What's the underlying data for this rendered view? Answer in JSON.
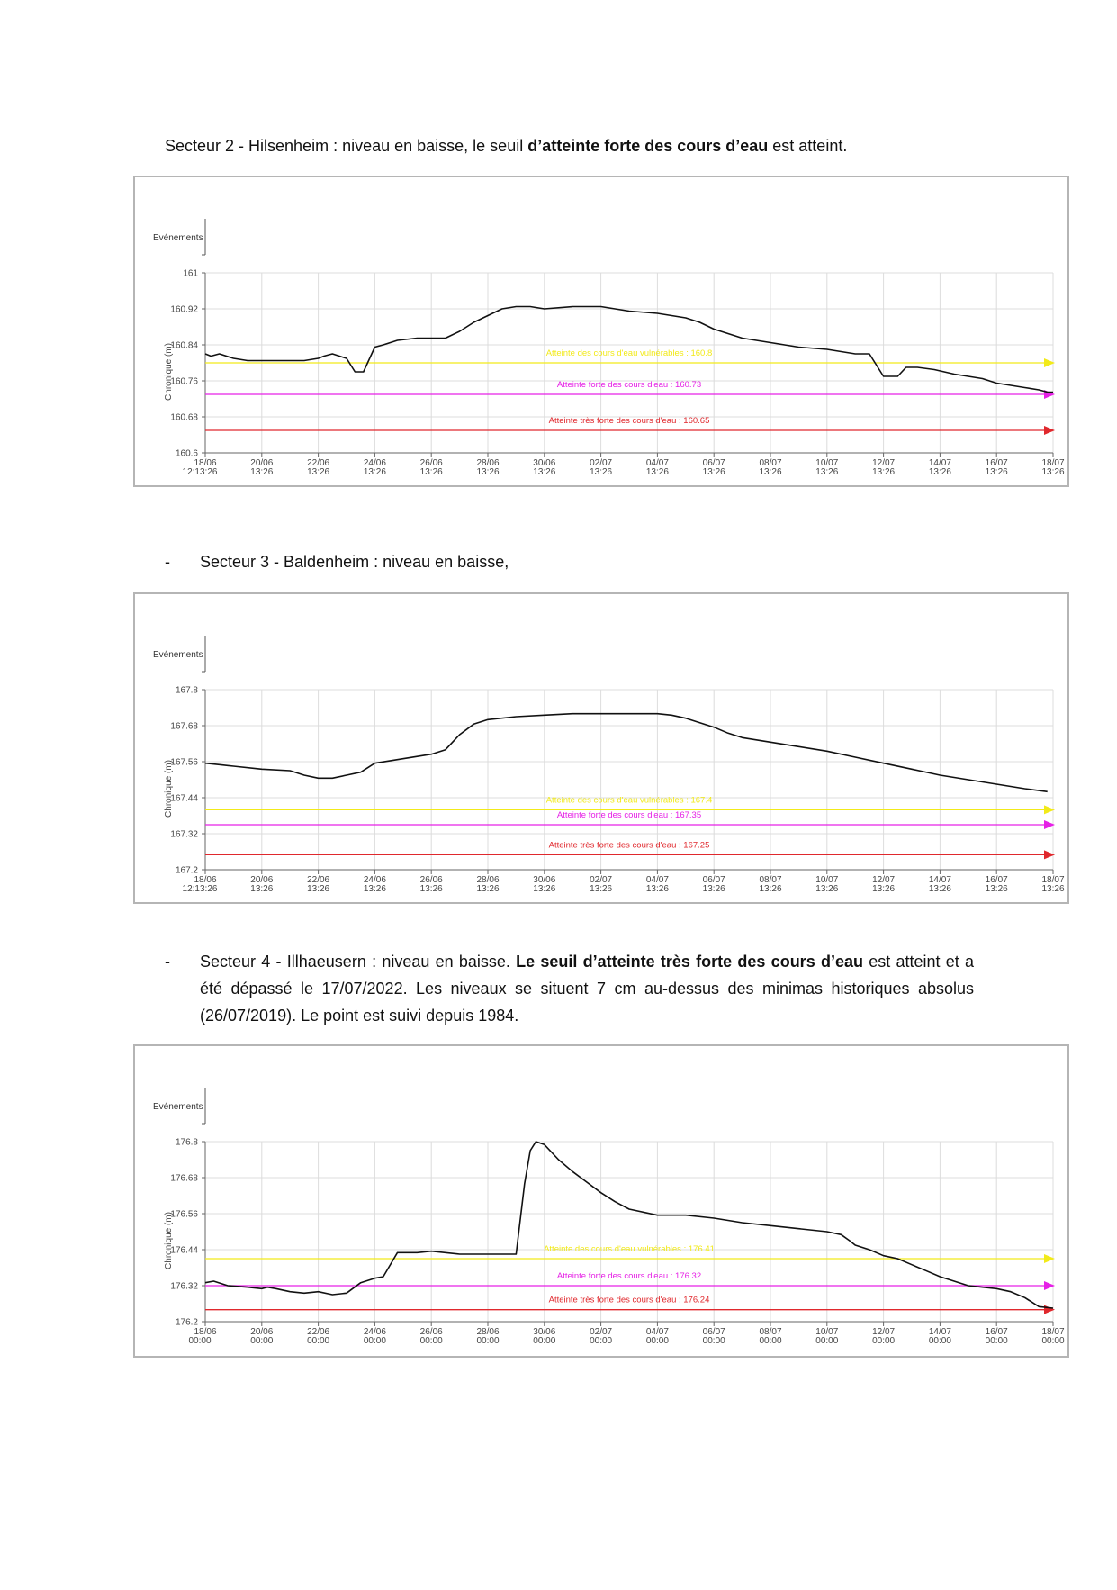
{
  "paragraphs": {
    "s2_pre": "Secteur 2 - Hilsenheim : niveau en baisse, le seuil ",
    "s2_bold": "d’atteinte forte des cours d’eau",
    "s2_post": " est atteint.",
    "bullet": "-",
    "s3": "Secteur 3 - Baldenheim : niveau en baisse,",
    "s4_pre": "Secteur 4 - Illhaeusern : niveau en baisse. ",
    "s4_bold": "Le seuil d’atteinte très forte des cours d’eau",
    "s4_post": " est atteint et a été dépassé le 17/07/2022. Les niveaux se situent 7 cm au-dessus des minimas historiques absolus (26/07/2019). Le point est suivi depuis 1984."
  },
  "colors": {
    "line": "#111111",
    "grid": "#dcdcdc",
    "yellow": "#f2ea19",
    "magenta": "#e620e6",
    "red": "#e0282d",
    "frame": "#b5b5b5"
  },
  "chart_data": [
    {
      "type": "line",
      "title": "Secteur 2 - Hilsenheim",
      "legend_label": "Evénements",
      "ylabel": "Chronique (m)",
      "ylim": [
        160.6,
        161
      ],
      "yticks": [
        "161",
        "160.92",
        "160.84",
        "160.76",
        "160.68",
        "160.6"
      ],
      "ytick_values": [
        161,
        160.92,
        160.84,
        160.76,
        160.68,
        160.6
      ],
      "xlim": [
        0,
        30
      ],
      "xticks": [
        {
          "date": "18/06",
          "time": "12:13:26"
        },
        {
          "date": "20/06",
          "time": "13:26"
        },
        {
          "date": "22/06",
          "time": "13:26"
        },
        {
          "date": "24/06",
          "time": "13:26"
        },
        {
          "date": "26/06",
          "time": "13:26"
        },
        {
          "date": "28/06",
          "time": "13:26"
        },
        {
          "date": "30/06",
          "time": "13:26"
        },
        {
          "date": "02/07",
          "time": "13:26"
        },
        {
          "date": "04/07",
          "time": "13:26"
        },
        {
          "date": "06/07",
          "time": "13:26"
        },
        {
          "date": "08/07",
          "time": "13:26"
        },
        {
          "date": "10/07",
          "time": "13:26"
        },
        {
          "date": "12/07",
          "time": "13:26"
        },
        {
          "date": "14/07",
          "time": "13:26"
        },
        {
          "date": "16/07",
          "time": "13:26"
        },
        {
          "date": "18/07",
          "time": "13:26"
        }
      ],
      "thresholds": [
        {
          "label": "Atteinte des cours d'eau vulnérables : 160.8",
          "value": 160.8,
          "color": "#f2ea19"
        },
        {
          "label": "Atteinte forte des cours d'eau : 160.73",
          "value": 160.73,
          "color": "#e620e6"
        },
        {
          "label": "Atteinte très forte des cours d'eau : 160.65",
          "value": 160.65,
          "color": "#e0282d"
        }
      ],
      "series": [
        {
          "name": "Chronique",
          "x": [
            0,
            0.2,
            0.5,
            1,
            1.5,
            2,
            2.5,
            3,
            3.5,
            4,
            4.2,
            4.5,
            5,
            5.3,
            5.6,
            6,
            6.3,
            6.8,
            7.5,
            8,
            8.5,
            9,
            9.5,
            10,
            10.5,
            11,
            11.5,
            12,
            13,
            14,
            14.5,
            15,
            16,
            17,
            17.5,
            18,
            18.5,
            19,
            19.5,
            20,
            20.5,
            21,
            22,
            22.5,
            23,
            23.5,
            24,
            24.5,
            24.8,
            25.2,
            25.8,
            26.5,
            27,
            27.5,
            28,
            28.5,
            29,
            29.5,
            29.8,
            30
          ],
          "y": [
            160.82,
            160.815,
            160.82,
            160.81,
            160.805,
            160.805,
            160.805,
            160.805,
            160.805,
            160.81,
            160.815,
            160.82,
            160.81,
            160.78,
            160.78,
            160.835,
            160.84,
            160.85,
            160.855,
            160.855,
            160.855,
            160.87,
            160.89,
            160.905,
            160.92,
            160.925,
            160.925,
            160.92,
            160.925,
            160.925,
            160.92,
            160.915,
            160.91,
            160.9,
            160.89,
            160.875,
            160.865,
            160.855,
            160.85,
            160.845,
            160.84,
            160.835,
            160.83,
            160.825,
            160.82,
            160.82,
            160.77,
            160.77,
            160.79,
            160.79,
            160.785,
            160.775,
            160.77,
            160.765,
            160.755,
            160.75,
            160.745,
            160.74,
            160.735,
            160.735
          ]
        }
      ]
    },
    {
      "type": "line",
      "title": "Secteur 3 - Baldenheim",
      "legend_label": "Evénements",
      "ylabel": "Chronique (m)",
      "ylim": [
        167.2,
        167.8
      ],
      "yticks": [
        "167.8",
        "167.68",
        "167.56",
        "167.44",
        "167.32",
        "167.2"
      ],
      "ytick_values": [
        167.8,
        167.68,
        167.56,
        167.44,
        167.32,
        167.2
      ],
      "xlim": [
        0,
        30
      ],
      "xticks": [
        {
          "date": "18/06",
          "time": "12:13:26"
        },
        {
          "date": "20/06",
          "time": "13:26"
        },
        {
          "date": "22/06",
          "time": "13:26"
        },
        {
          "date": "24/06",
          "time": "13:26"
        },
        {
          "date": "26/06",
          "time": "13:26"
        },
        {
          "date": "28/06",
          "time": "13:26"
        },
        {
          "date": "30/06",
          "time": "13:26"
        },
        {
          "date": "02/07",
          "time": "13:26"
        },
        {
          "date": "04/07",
          "time": "13:26"
        },
        {
          "date": "06/07",
          "time": "13:26"
        },
        {
          "date": "08/07",
          "time": "13:26"
        },
        {
          "date": "10/07",
          "time": "13:26"
        },
        {
          "date": "12/07",
          "time": "13:26"
        },
        {
          "date": "14/07",
          "time": "13:26"
        },
        {
          "date": "16/07",
          "time": "13:26"
        },
        {
          "date": "18/07",
          "time": "13:26"
        }
      ],
      "thresholds": [
        {
          "label": "Atteinte des cours d'eau vulnérables : 167.4",
          "value": 167.4,
          "color": "#f2ea19"
        },
        {
          "label": "Atteinte forte des cours d'eau : 167.35",
          "value": 167.35,
          "color": "#e620e6"
        },
        {
          "label": "Atteinte très forte des cours d'eau : 167.25",
          "value": 167.25,
          "color": "#e0282d"
        }
      ],
      "series": [
        {
          "name": "Chronique",
          "x": [
            0,
            0.5,
            1,
            2,
            3,
            3.5,
            4,
            4.5,
            5,
            5.5,
            6,
            7,
            8,
            8.5,
            9,
            9.5,
            10,
            11,
            12,
            13,
            14,
            15,
            16,
            16.5,
            17,
            17.5,
            18,
            18.5,
            19,
            20,
            21,
            22,
            23,
            24,
            25,
            26,
            27,
            28,
            29,
            29.8
          ],
          "y": [
            167.555,
            167.55,
            167.545,
            167.535,
            167.53,
            167.515,
            167.505,
            167.505,
            167.515,
            167.525,
            167.555,
            167.57,
            167.585,
            167.6,
            167.65,
            167.685,
            167.7,
            167.71,
            167.715,
            167.72,
            167.72,
            167.72,
            167.72,
            167.715,
            167.705,
            167.69,
            167.675,
            167.655,
            167.64,
            167.625,
            167.61,
            167.595,
            167.575,
            167.555,
            167.535,
            167.515,
            167.5,
            167.485,
            167.47,
            167.46
          ]
        }
      ]
    },
    {
      "type": "line",
      "title": "Secteur 4 - Illhaeusern",
      "legend_label": "Evénements",
      "ylabel": "Chronique (m)",
      "ylim": [
        176.2,
        176.8
      ],
      "yticks": [
        "176.8",
        "176.68",
        "176.56",
        "176.44",
        "176.32",
        "176.2"
      ],
      "ytick_values": [
        176.8,
        176.68,
        176.56,
        176.44,
        176.32,
        176.2
      ],
      "xlim": [
        0,
        30
      ],
      "xticks": [
        {
          "date": "18/06",
          "time": "00:00"
        },
        {
          "date": "20/06",
          "time": "00:00"
        },
        {
          "date": "22/06",
          "time": "00:00"
        },
        {
          "date": "24/06",
          "time": "00:00"
        },
        {
          "date": "26/06",
          "time": "00:00"
        },
        {
          "date": "28/06",
          "time": "00:00"
        },
        {
          "date": "30/06",
          "time": "00:00"
        },
        {
          "date": "02/07",
          "time": "00:00"
        },
        {
          "date": "04/07",
          "time": "00:00"
        },
        {
          "date": "06/07",
          "time": "00:00"
        },
        {
          "date": "08/07",
          "time": "00:00"
        },
        {
          "date": "10/07",
          "time": "00:00"
        },
        {
          "date": "12/07",
          "time": "00:00"
        },
        {
          "date": "14/07",
          "time": "00:00"
        },
        {
          "date": "16/07",
          "time": "00:00"
        },
        {
          "date": "18/07",
          "time": "00:00"
        }
      ],
      "thresholds": [
        {
          "label": "Atteinte des cours d'eau vulnérables : 176.41",
          "value": 176.41,
          "color": "#f2ea19"
        },
        {
          "label": "Atteinte forte des cours d'eau : 176.32",
          "value": 176.32,
          "color": "#e620e6"
        },
        {
          "label": "Atteinte très forte des cours d'eau : 176.24",
          "value": 176.24,
          "color": "#e0282d"
        }
      ],
      "series": [
        {
          "name": "Chronique",
          "x": [
            0,
            0.3,
            0.8,
            1.5,
            2,
            2.2,
            2.5,
            3,
            3.5,
            4,
            4.5,
            5,
            5.5,
            6,
            6.3,
            6.8,
            7.5,
            8,
            9,
            10,
            11,
            11.3,
            11.5,
            11.7,
            12,
            12.5,
            13,
            13.5,
            14,
            14.5,
            15,
            16,
            17,
            18,
            19,
            20,
            21,
            22,
            22.5,
            22.8,
            23,
            23.5,
            24,
            24.5,
            25,
            25.5,
            26,
            26.5,
            27,
            27.5,
            28,
            28.5,
            29,
            29.5,
            30
          ],
          "y": [
            176.33,
            176.335,
            176.32,
            176.315,
            176.31,
            176.315,
            176.31,
            176.3,
            176.295,
            176.3,
            176.29,
            176.295,
            176.33,
            176.345,
            176.35,
            176.43,
            176.43,
            176.435,
            176.425,
            176.425,
            176.425,
            176.66,
            176.77,
            176.8,
            176.79,
            176.74,
            176.7,
            176.665,
            176.63,
            176.6,
            176.575,
            176.555,
            176.555,
            176.545,
            176.53,
            176.52,
            176.51,
            176.5,
            176.49,
            176.47,
            176.455,
            176.44,
            176.42,
            176.41,
            176.39,
            176.37,
            176.35,
            176.335,
            176.32,
            176.315,
            176.31,
            176.3,
            176.28,
            176.25,
            176.245
          ]
        }
      ]
    }
  ]
}
